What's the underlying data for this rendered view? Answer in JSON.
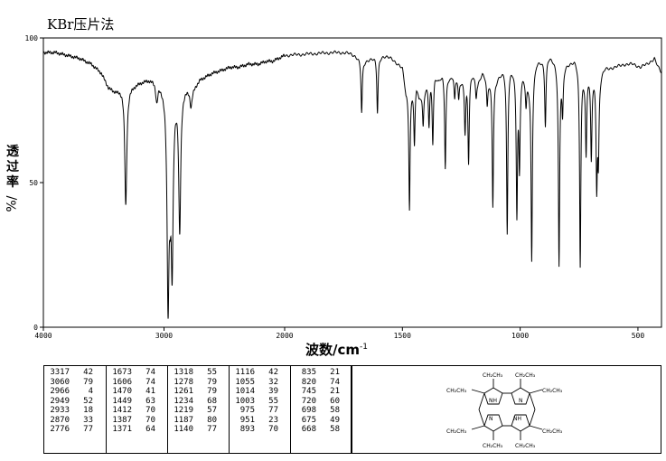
{
  "title": "KBr压片法",
  "colors": {
    "line": "#000000",
    "background": "#ffffff"
  },
  "chart_data": {
    "type": "line",
    "title": "KBr压片法",
    "xlabel": "波数/cm",
    "xlabel_sup": "-1",
    "ylabel": "透过率",
    "ylabel_unit": "%/",
    "xlim": [
      4000,
      400
    ],
    "ylim": [
      0,
      100
    ],
    "x_ticks": [
      4000,
      3000,
      2000,
      1500,
      1000,
      500
    ],
    "x_tick_labels": [
      "4000",
      "3000",
      "2000",
      "1500",
      "1000",
      "500"
    ],
    "y_ticks": [
      0,
      50,
      100
    ],
    "y_tick_labels": [
      "0",
      "50",
      "100"
    ],
    "grid": false,
    "baseline": [
      [
        4000,
        95
      ],
      [
        3900,
        95
      ],
      [
        3800,
        94
      ],
      [
        3700,
        93
      ],
      [
        3600,
        91
      ],
      [
        3520,
        88
      ],
      [
        3460,
        83
      ],
      [
        3420,
        82
      ],
      [
        3380,
        82
      ],
      [
        3345,
        83
      ],
      [
        3290,
        83
      ],
      [
        3240,
        84
      ],
      [
        3190,
        85
      ],
      [
        3130,
        86
      ],
      [
        3080,
        86
      ],
      [
        3030,
        85
      ],
      [
        2760,
        83
      ],
      [
        2700,
        86
      ],
      [
        2600,
        88
      ],
      [
        2520,
        89
      ],
      [
        2450,
        90
      ],
      [
        2380,
        90
      ],
      [
        2300,
        91
      ],
      [
        2220,
        91
      ],
      [
        2150,
        92
      ],
      [
        2100,
        92
      ],
      [
        2000,
        94
      ],
      [
        1900,
        94.5
      ],
      [
        1800,
        95
      ],
      [
        1740,
        95
      ],
      [
        1700,
        94
      ],
      [
        1660,
        92
      ],
      [
        1640,
        93
      ],
      [
        1580,
        94
      ],
      [
        1545,
        93
      ],
      [
        1500,
        90
      ],
      [
        1485,
        82
      ],
      [
        1440,
        85
      ],
      [
        1430,
        80
      ],
      [
        1390,
        85
      ],
      [
        1362,
        88
      ],
      [
        1345,
        86
      ],
      [
        1330,
        88
      ],
      [
        1295,
        87
      ],
      [
        1285,
        88
      ],
      [
        1250,
        86
      ],
      [
        1200,
        88
      ],
      [
        1180,
        85
      ],
      [
        1160,
        88
      ],
      [
        1128,
        86
      ],
      [
        1100,
        86
      ],
      [
        1085,
        88
      ],
      [
        1070,
        90
      ],
      [
        1030,
        90
      ],
      [
        1010,
        88
      ],
      [
        990,
        88
      ],
      [
        960,
        85
      ],
      [
        930,
        92
      ],
      [
        900,
        93
      ],
      [
        880,
        94
      ],
      [
        860,
        93
      ],
      [
        845,
        92
      ],
      [
        830,
        90
      ],
      [
        810,
        91
      ],
      [
        790,
        92
      ],
      [
        770,
        93
      ],
      [
        755,
        92
      ],
      [
        730,
        88
      ],
      [
        710,
        89
      ],
      [
        690,
        88
      ],
      [
        660,
        88
      ],
      [
        640,
        90
      ],
      [
        600,
        90
      ],
      [
        560,
        91
      ],
      [
        520,
        91
      ],
      [
        490,
        90
      ],
      [
        460,
        91
      ],
      [
        430,
        93
      ],
      [
        415,
        90
      ],
      [
        400,
        88
      ]
    ],
    "peaks": [
      {
        "wavenumber": 3317,
        "transmittance": 42
      },
      {
        "wavenumber": 3060,
        "transmittance": 79
      },
      {
        "wavenumber": 2966,
        "transmittance": 4
      },
      {
        "wavenumber": 2949,
        "transmittance": 52
      },
      {
        "wavenumber": 2933,
        "transmittance": 18
      },
      {
        "wavenumber": 2870,
        "transmittance": 33
      },
      {
        "wavenumber": 2776,
        "transmittance": 77
      },
      {
        "wavenumber": 1673,
        "transmittance": 74
      },
      {
        "wavenumber": 1606,
        "transmittance": 74
      },
      {
        "wavenumber": 1470,
        "transmittance": 41
      },
      {
        "wavenumber": 1449,
        "transmittance": 63
      },
      {
        "wavenumber": 1412,
        "transmittance": 70
      },
      {
        "wavenumber": 1387,
        "transmittance": 70
      },
      {
        "wavenumber": 1371,
        "transmittance": 64
      },
      {
        "wavenumber": 1318,
        "transmittance": 55
      },
      {
        "wavenumber": 1278,
        "transmittance": 79
      },
      {
        "wavenumber": 1261,
        "transmittance": 79
      },
      {
        "wavenumber": 1234,
        "transmittance": 68
      },
      {
        "wavenumber": 1219,
        "transmittance": 57
      },
      {
        "wavenumber": 1187,
        "transmittance": 80
      },
      {
        "wavenumber": 1140,
        "transmittance": 77
      },
      {
        "wavenumber": 1116,
        "transmittance": 42
      },
      {
        "wavenumber": 1055,
        "transmittance": 32
      },
      {
        "wavenumber": 1014,
        "transmittance": 39
      },
      {
        "wavenumber": 1003,
        "transmittance": 55
      },
      {
        "wavenumber": 975,
        "transmittance": 77
      },
      {
        "wavenumber": 951,
        "transmittance": 23
      },
      {
        "wavenumber": 893,
        "transmittance": 70
      },
      {
        "wavenumber": 835,
        "transmittance": 21
      },
      {
        "wavenumber": 820,
        "transmittance": 74
      },
      {
        "wavenumber": 745,
        "transmittance": 21
      },
      {
        "wavenumber": 720,
        "transmittance": 60
      },
      {
        "wavenumber": 698,
        "transmittance": 58
      },
      {
        "wavenumber": 675,
        "transmittance": 49
      },
      {
        "wavenumber": 668,
        "transmittance": 58
      }
    ]
  },
  "peak_table_columns": [
    [
      [
        "3317",
        "42"
      ],
      [
        "3060",
        "79"
      ],
      [
        "2966",
        "4"
      ],
      [
        "2949",
        "52"
      ],
      [
        "2933",
        "18"
      ],
      [
        "2870",
        "33"
      ],
      [
        "2776",
        "77"
      ]
    ],
    [
      [
        "1673",
        "74"
      ],
      [
        "1606",
        "74"
      ],
      [
        "1470",
        "41"
      ],
      [
        "1449",
        "63"
      ],
      [
        "1412",
        "70"
      ],
      [
        "1387",
        "70"
      ],
      [
        "1371",
        "64"
      ]
    ],
    [
      [
        "1318",
        "55"
      ],
      [
        "1278",
        "79"
      ],
      [
        "1261",
        "79"
      ],
      [
        "1234",
        "68"
      ],
      [
        "1219",
        "57"
      ],
      [
        "1187",
        "80"
      ],
      [
        "1140",
        "77"
      ]
    ],
    [
      [
        "1116",
        "42"
      ],
      [
        "1055",
        "32"
      ],
      [
        "1014",
        "39"
      ],
      [
        "1003",
        "55"
      ],
      [
        "975",
        "77"
      ],
      [
        "951",
        "23"
      ],
      [
        "893",
        "70"
      ]
    ],
    [
      [
        "835",
        "21"
      ],
      [
        "820",
        "74"
      ],
      [
        "745",
        "21"
      ],
      [
        "720",
        "60"
      ],
      [
        "698",
        "58"
      ],
      [
        "675",
        "49"
      ],
      [
        "668",
        "58"
      ]
    ]
  ],
  "structure": {
    "substituent": "CH₂CH₃",
    "nh": "NH",
    "n": "N"
  }
}
